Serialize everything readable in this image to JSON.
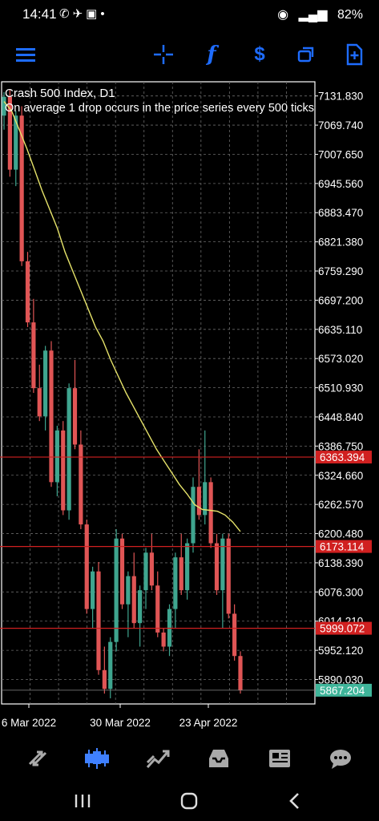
{
  "status": {
    "time": "14:41",
    "battery": "82%",
    "icons_left": [
      "whatsapp-icon",
      "bluetooth-share-icon",
      "gallery-icon",
      "dot-icon"
    ],
    "icons_right": [
      "hotspot-icon",
      "4g-icon",
      "signal-icon"
    ]
  },
  "toolbar": {
    "icons": [
      "menu-icon",
      "crosshair-icon",
      "function-icon",
      "trade-icon",
      "windows-icon",
      "add-template-icon"
    ]
  },
  "chart": {
    "title": "Crash 500 Index, D1",
    "description": "On average 1 drop occurs in the price series every 500 ticks"
  },
  "chart_data": {
    "type": "candlestick",
    "symbol": "Crash 500 Index",
    "timeframe": "D1",
    "ylim": [
      5838,
      7162
    ],
    "y_ticks": [
      "7131.830",
      "7069.740",
      "7007.650",
      "6945.560",
      "6883.470",
      "6821.380",
      "6759.290",
      "6697.200",
      "6635.110",
      "6573.020",
      "6510.930",
      "6448.840",
      "6386.750",
      "6324.660",
      "6262.570",
      "6200.480",
      "6138.390",
      "6076.300",
      "6014.210",
      "5952.120",
      "5890.030"
    ],
    "x_ticks": [
      "6 Mar 2022",
      "30 Mar 2022",
      "23 Apr 2022"
    ],
    "price_lines": [
      {
        "label": "6363.394",
        "value": 6363.394,
        "color": "#d02020"
      },
      {
        "label": "6173.114",
        "value": 6173.114,
        "color": "#d02020"
      },
      {
        "label": "5999.072",
        "value": 5999.072,
        "color": "#d02020"
      }
    ],
    "current_price": {
      "label": "5867.204",
      "value": 5867.204,
      "color": "#3fb59a"
    },
    "up_color": "#3fa58f",
    "down_color": "#e05555",
    "ma_color": "#e6e36a",
    "candles": [
      [
        7090,
        7140,
        7060,
        7130
      ],
      [
        7130,
        7145,
        6960,
        6975
      ],
      [
        6975,
        7100,
        6940,
        7090
      ],
      [
        7090,
        7110,
        6770,
        6780
      ],
      [
        6780,
        6800,
        6640,
        6650
      ],
      [
        6650,
        6700,
        6500,
        6510
      ],
      [
        6510,
        6560,
        6440,
        6450
      ],
      [
        6450,
        6600,
        6420,
        6590
      ],
      [
        6590,
        6610,
        6300,
        6310
      ],
      [
        6310,
        6430,
        6280,
        6420
      ],
      [
        6420,
        6440,
        6240,
        6250
      ],
      [
        6250,
        6520,
        6230,
        6510
      ],
      [
        6510,
        6570,
        6380,
        6390
      ],
      [
        6390,
        6420,
        6210,
        6220
      ],
      [
        6220,
        6230,
        6030,
        6040
      ],
      [
        6040,
        6130,
        6000,
        6120
      ],
      [
        6120,
        6140,
        5900,
        5910
      ],
      [
        5910,
        5960,
        5860,
        5870
      ],
      [
        5870,
        5980,
        5850,
        5970
      ],
      [
        5970,
        6210,
        5950,
        6190
      ],
      [
        6190,
        6200,
        6040,
        6050
      ],
      [
        6050,
        6120,
        5980,
        6110
      ],
      [
        6110,
        6160,
        6000,
        6010
      ],
      [
        6010,
        6090,
        5960,
        6080
      ],
      [
        6080,
        6170,
        6040,
        6160
      ],
      [
        6160,
        6200,
        6080,
        6090
      ],
      [
        6090,
        6120,
        5980,
        5990
      ],
      [
        5990,
        6000,
        5950,
        5960
      ],
      [
        5960,
        6050,
        5940,
        6040
      ],
      [
        6040,
        6160,
        6000,
        6150
      ],
      [
        6150,
        6200,
        6070,
        6080
      ],
      [
        6080,
        6190,
        6060,
        6180
      ],
      [
        6180,
        6320,
        6160,
        6300
      ],
      [
        6300,
        6380,
        6230,
        6240
      ],
      [
        6240,
        6420,
        6220,
        6310
      ],
      [
        6310,
        6320,
        6170,
        6180
      ],
      [
        6180,
        6200,
        6070,
        6080
      ],
      [
        6080,
        6200,
        6000,
        6190
      ],
      [
        6190,
        6200,
        6020,
        6030
      ],
      [
        6030,
        6050,
        5930,
        5940
      ],
      [
        5940,
        5950,
        5860,
        5867
      ]
    ],
    "moving_average": [
      7120,
      7100,
      7060,
      7020,
      6975,
      6930,
      6890,
      6850,
      6800,
      6760,
      6720,
      6680,
      6640,
      6610,
      6570,
      6535,
      6500,
      6470,
      6440,
      6410,
      6380,
      6355,
      6330,
      6305,
      6285,
      6262,
      6252,
      6250,
      6248,
      6240,
      6225,
      6205
    ]
  },
  "bottom": {
    "icons": [
      "quotes-icon",
      "chart-icon",
      "trade-icon",
      "history-icon",
      "news-icon",
      "chat-icon"
    ]
  },
  "nav": {
    "icons": [
      "recent-apps-icon",
      "home-icon",
      "back-icon"
    ]
  }
}
